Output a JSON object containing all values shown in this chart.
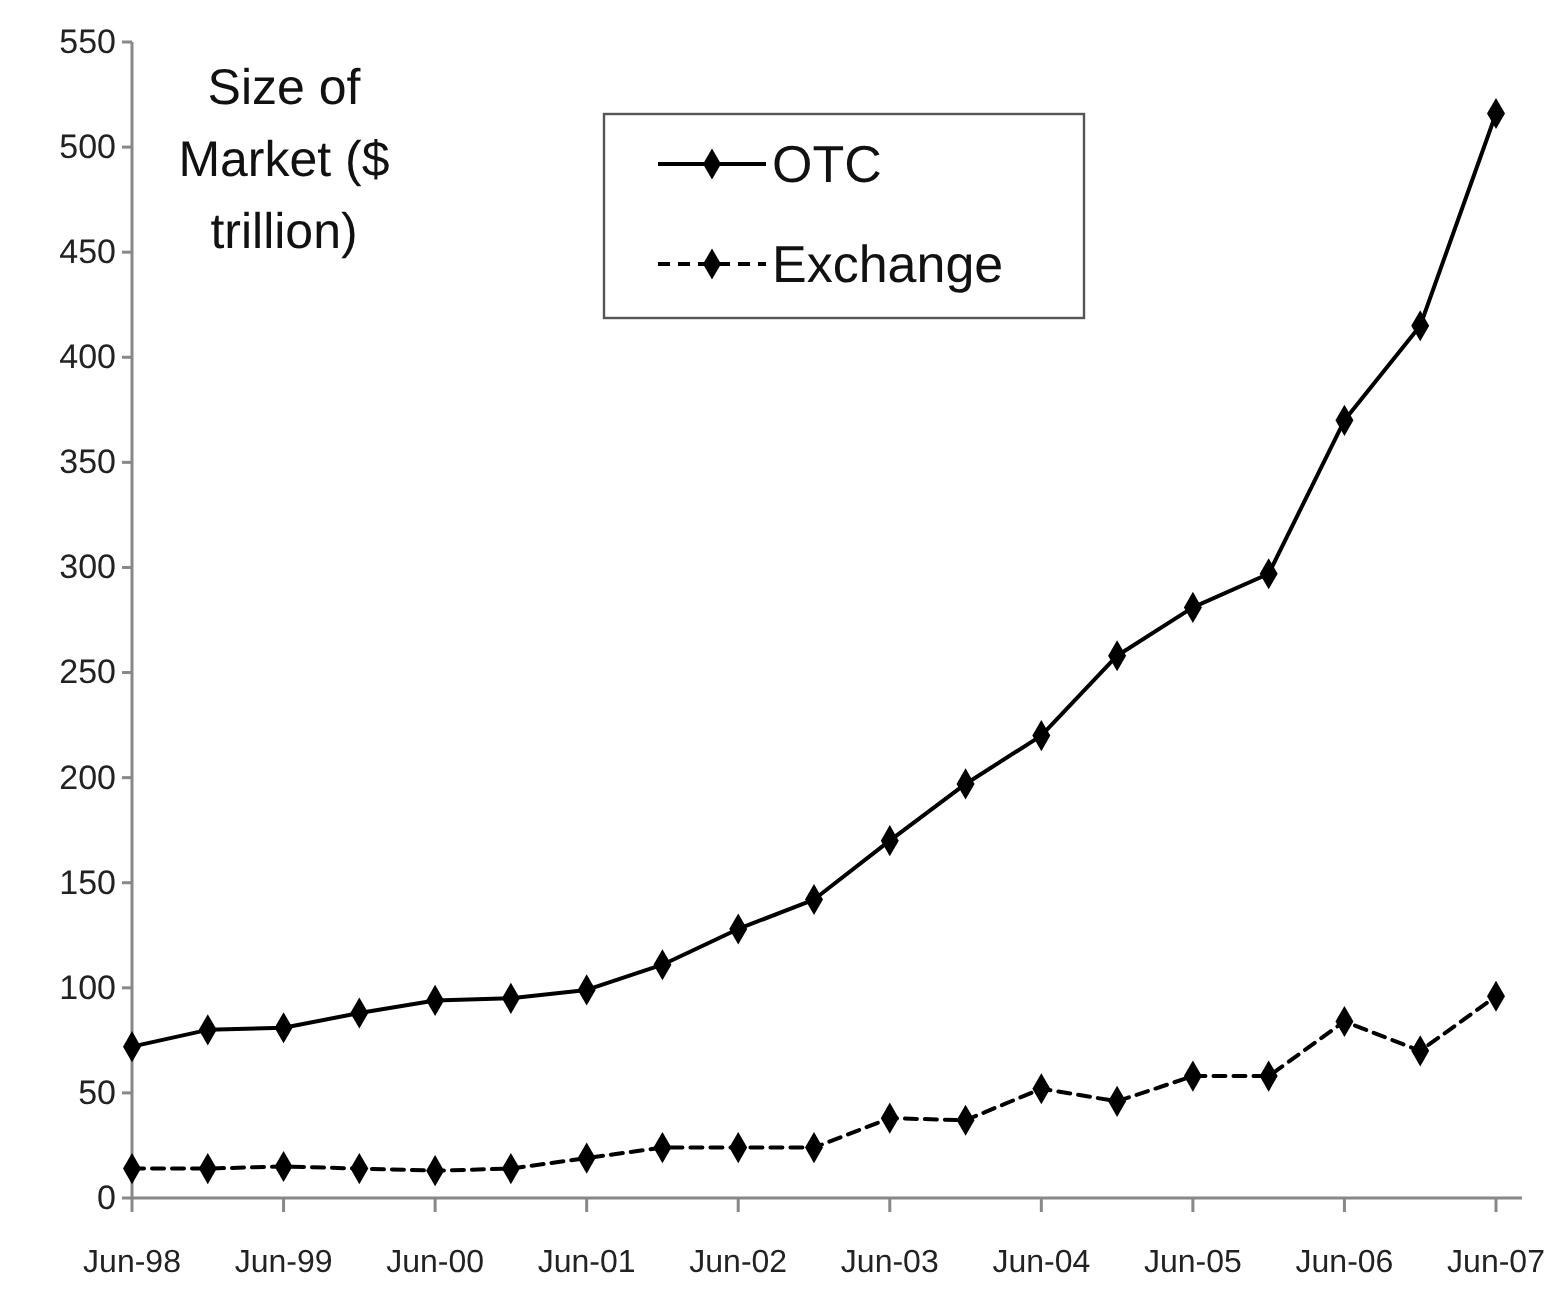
{
  "chart_data": {
    "type": "line",
    "ylabel": "Size of Market ($ trillion)",
    "categories": [
      "Jun-98",
      null,
      "Jun-99",
      null,
      "Jun-00",
      null,
      "Jun-01",
      null,
      "Jun-02",
      null,
      "Jun-03",
      null,
      "Jun-04",
      null,
      "Jun-05",
      null,
      "Jun-06",
      null,
      "Jun-07"
    ],
    "series": [
      {
        "name": "OTC",
        "color": "#000000",
        "line_style": "solid",
        "values": [
          72,
          80,
          81,
          88,
          94,
          95,
          99,
          111,
          128,
          142,
          170,
          197,
          220,
          258,
          281,
          297,
          370,
          415,
          516
        ]
      },
      {
        "name": "Exchange",
        "color": "#000000",
        "line_style": "dashed",
        "values": [
          14,
          14,
          15,
          14,
          13,
          14,
          19,
          24,
          24,
          24,
          38,
          37,
          52,
          46,
          58,
          58,
          84,
          70,
          96
        ]
      }
    ],
    "ylim": [
      0,
      550
    ],
    "yticks": [
      0,
      50,
      100,
      150,
      200,
      250,
      300,
      350,
      400,
      450,
      500,
      550
    ],
    "grid": false,
    "legend": "top",
    "marker": "diamond"
  }
}
